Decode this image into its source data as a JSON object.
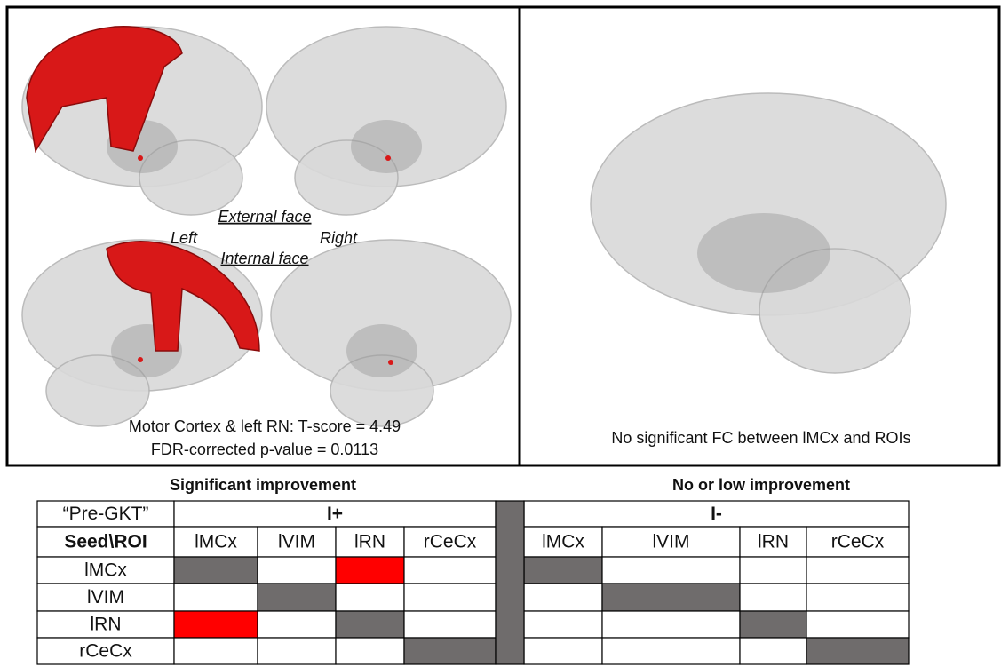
{
  "panels": {
    "left": {
      "external_face": "External face",
      "left": "Left",
      "right": "Right",
      "internal_face": "Internal face",
      "stats": [
        "Motor Cortex & left RN: T-score = 4.49",
        "FDR-corrected p-value = 0.0113"
      ]
    },
    "right": {
      "caption": "No significant FC between lMCx and ROIs"
    }
  },
  "table": {
    "headers": [
      "Significant improvement",
      "No or low improvement"
    ],
    "group_row": [
      "“Pre-GKT”",
      "I+",
      "I-"
    ],
    "column_row": [
      "Seed\\ROI",
      "lMCx",
      "lVIM",
      "lRN",
      "rCeCx",
      "lMCx",
      "lVIM",
      "lRN",
      "rCeCx"
    ],
    "rows": [
      {
        "label": "lMCx",
        "fills": [
          "#6f6c6c",
          "#ffffff",
          "#ff0000",
          "#ffffff",
          "#6f6c6c",
          "#ffffff",
          "#ffffff",
          "#ffffff"
        ]
      },
      {
        "label": "lVIM",
        "fills": [
          "#ffffff",
          "#6f6c6c",
          "#ffffff",
          "#ffffff",
          "#ffffff",
          "#6f6c6c",
          "#ffffff",
          "#ffffff"
        ]
      },
      {
        "label": "lRN",
        "fills": [
          "#ff0000",
          "#ffffff",
          "#6f6c6c",
          "#ffffff",
          "#ffffff",
          "#ffffff",
          "#6f6c6c",
          "#ffffff"
        ]
      },
      {
        "label": "rCeCx",
        "fills": [
          "#ffffff",
          "#ffffff",
          "#ffffff",
          "#6f6c6c",
          "#ffffff",
          "#ffffff",
          "#ffffff",
          "#6f6c6c"
        ]
      }
    ]
  }
}
